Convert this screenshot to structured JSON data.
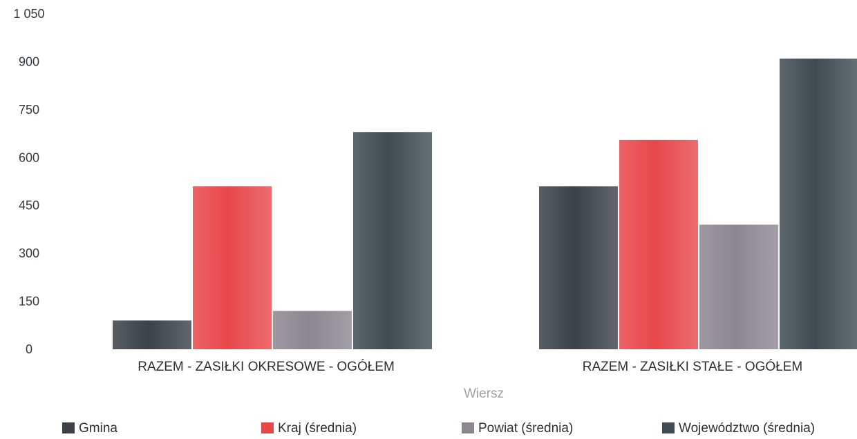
{
  "chart_data": {
    "type": "bar",
    "title": "",
    "xlabel": "Wiersz",
    "ylabel": "",
    "ylim": [
      0,
      1050
    ],
    "yticks": [
      0,
      150,
      300,
      450,
      600,
      750,
      900,
      1050
    ],
    "ytick_labels": [
      "0",
      "150",
      "300",
      "450",
      "600",
      "750",
      "900",
      "1 050"
    ],
    "grid": false,
    "legend_position": "bottom",
    "categories": [
      "RAZEM -  ZASIŁKI OKRESOWE - OGÓŁEM",
      "RAZEM -  ZASIŁKI STAŁE - OGÓŁEM"
    ],
    "series": [
      {
        "name": "Gmina",
        "color": "#3a4248",
        "values": [
          90,
          510
        ]
      },
      {
        "name": "Kraj (średnia)",
        "color": "#e8474a",
        "values": [
          510,
          655
        ]
      },
      {
        "name": "Powiat (średnia)",
        "color": "#8c8690",
        "values": [
          120,
          390
        ]
      },
      {
        "name": "Województwo (średnia)",
        "color": "#3e4c52",
        "values": [
          680,
          910
        ]
      }
    ]
  }
}
